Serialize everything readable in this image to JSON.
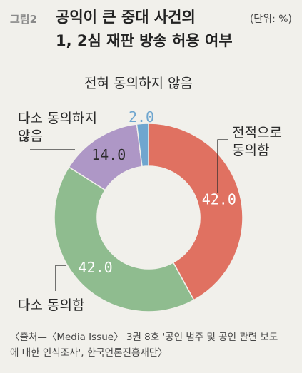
{
  "figure_label": "그림2",
  "title": "공익이 큰 중대 사건의\n1, 2심 재판 방송 허용 여부",
  "unit": "(단위: %)",
  "source": "〈출처—〈Media Issue〉 3권 8호 '공인 범주 및 공인 관련 보도\n에 대한 인식조사', 한국언론진흥재단〉",
  "chart_data": {
    "type": "pie",
    "donut": true,
    "categories": [
      "전적으로 동의함",
      "다소 동의함",
      "다소 동의하지 않음",
      "전혀 동의하지 않음"
    ],
    "values": [
      42.0,
      42.0,
      14.0,
      2.0
    ],
    "value_labels": [
      "42.0",
      "42.0",
      "14.0",
      "2.0"
    ],
    "colors": [
      "#e07161",
      "#8fbc8f",
      "#ae97c6",
      "#6fa6cf"
    ],
    "label_lines": [
      [
        "전적으로",
        "동의함"
      ],
      [
        "다소 동의함"
      ],
      [
        "다소 동의하지",
        "않음"
      ],
      [
        "전혀 동의하지 않음"
      ]
    ],
    "title": "",
    "legend": "none"
  }
}
